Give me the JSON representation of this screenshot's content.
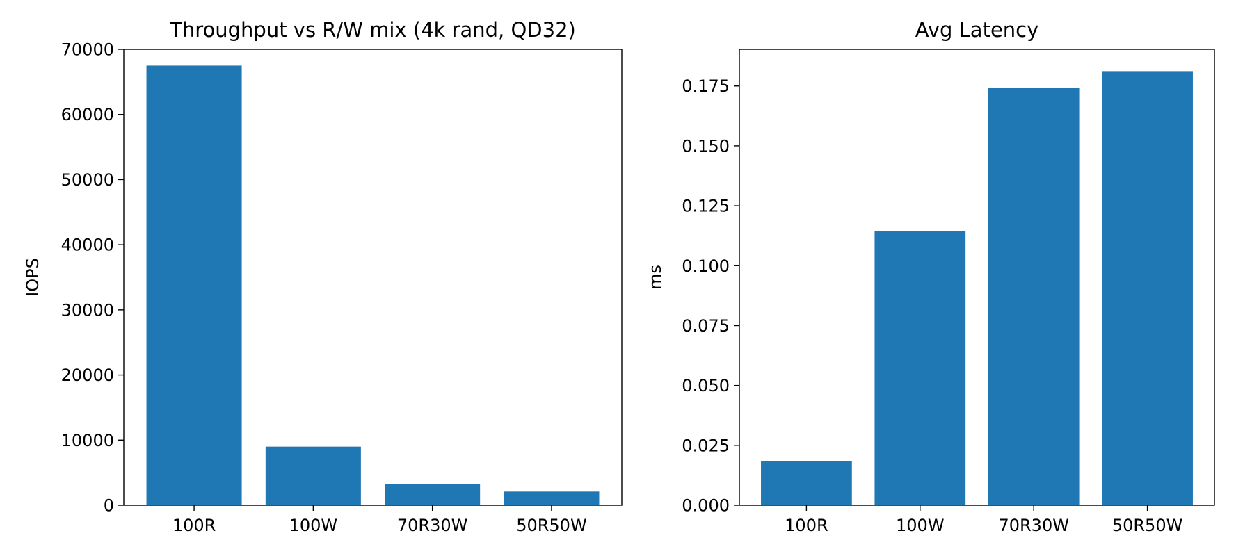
{
  "chart_data": [
    {
      "type": "bar",
      "title": "Throughput vs R/W mix (4k rand, QD32)",
      "xlabel": "",
      "ylabel": "IOPS",
      "categories": [
        "100R",
        "100W",
        "70R30W",
        "50R50W"
      ],
      "values": [
        67500,
        9000,
        3300,
        2100
      ],
      "ylim": [
        0,
        70000
      ],
      "yticks": [
        0,
        10000,
        20000,
        30000,
        40000,
        50000,
        60000,
        70000
      ],
      "ytick_labels": [
        "0",
        "10000",
        "20000",
        "30000",
        "40000",
        "50000",
        "60000",
        "70000"
      ],
      "bar_color": "#1f77b4",
      "grid": false
    },
    {
      "type": "bar",
      "title": "Avg Latency",
      "xlabel": "",
      "ylabel": "ms",
      "categories": [
        "100R",
        "100W",
        "70R30W",
        "50R50W"
      ],
      "values": [
        0.0183,
        0.1143,
        0.1742,
        0.1812
      ],
      "ylim": [
        0,
        0.1903
      ],
      "yticks": [
        0,
        0.025,
        0.05,
        0.075,
        0.1,
        0.125,
        0.15,
        0.175
      ],
      "ytick_labels": [
        "0.000",
        "0.025",
        "0.050",
        "0.075",
        "0.100",
        "0.125",
        "0.150",
        "0.175"
      ],
      "bar_color": "#1f77b4",
      "grid": false
    }
  ]
}
